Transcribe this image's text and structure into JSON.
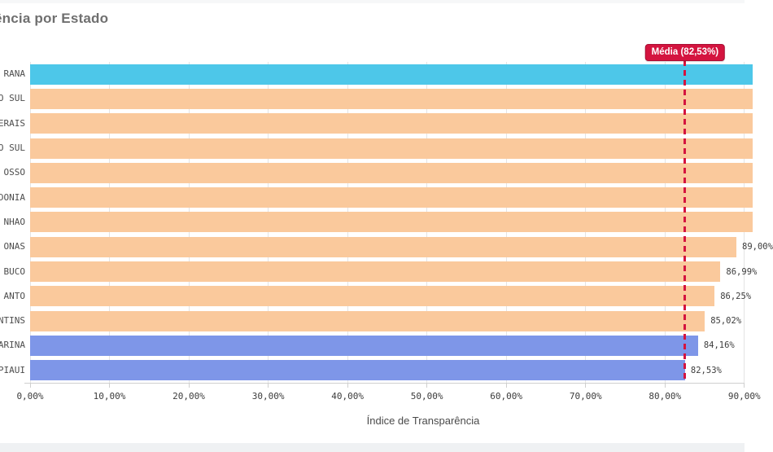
{
  "header": {
    "title": "ência por Estado"
  },
  "colors": {
    "highlight_bar": "#4dc7e9",
    "default_bar": "#fac99c",
    "selected_bar": "#7e96e8",
    "mean_red": "#d4143f",
    "mean_border": "#a90f34",
    "grid": "#e4e4e4",
    "axis_line": "#cfcfcf",
    "tick_text": "#3c3c3c",
    "state_text": "#4d4d4d",
    "value_text": "#3c3c3c",
    "title_text": "#6f6f6f",
    "axis_label_text": "#4a4a4a",
    "strip_top": "#f6f7f8",
    "strip_bottom": "#eff1f3"
  },
  "chart": {
    "xlabel": "Índice de Transparência",
    "mean": {
      "label": "Média (82,53%)",
      "value_pct": 82.53
    },
    "ticks": [
      {
        "pct": 0,
        "label": "0,00%"
      },
      {
        "pct": 10,
        "label": "10,00%"
      },
      {
        "pct": 20,
        "label": "20,00%"
      },
      {
        "pct": 30,
        "label": "30,00%"
      },
      {
        "pct": 40,
        "label": "40,00%"
      },
      {
        "pct": 50,
        "label": "50,00%"
      },
      {
        "pct": 60,
        "label": "60,00%"
      },
      {
        "pct": 70,
        "label": "70,00%"
      },
      {
        "pct": 80,
        "label": "80,00%"
      },
      {
        "pct": 90,
        "label": "90,00%"
      }
    ],
    "rows": [
      {
        "label": "RANA",
        "color": "highlight_bar",
        "value_pct": null,
        "value_label": "",
        "cut": true
      },
      {
        "label": "O SUL",
        "color": "default_bar",
        "value_pct": null,
        "value_label": "",
        "cut": true
      },
      {
        "label": "ERAIS",
        "color": "default_bar",
        "value_pct": null,
        "value_label": "",
        "cut": true
      },
      {
        "label": "O SUL",
        "color": "default_bar",
        "value_pct": null,
        "value_label": "",
        "cut": true
      },
      {
        "label": "OSSO",
        "color": "default_bar",
        "value_pct": null,
        "value_label": "",
        "cut": true
      },
      {
        "label": "DONIA",
        "color": "default_bar",
        "value_pct": null,
        "value_label": "",
        "cut": true
      },
      {
        "label": "NHAO",
        "color": "default_bar",
        "value_pct": null,
        "value_label": "",
        "cut": true
      },
      {
        "label": "ONAS",
        "color": "default_bar",
        "value_pct": 89.0,
        "value_label": "89,00%",
        "cut": false
      },
      {
        "label": "BUCO",
        "color": "default_bar",
        "value_pct": 86.99,
        "value_label": "86,99%",
        "cut": false
      },
      {
        "label": "ANTO",
        "color": "default_bar",
        "value_pct": 86.25,
        "value_label": "86,25%",
        "cut": false
      },
      {
        "label": "NTINS",
        "color": "default_bar",
        "value_pct": 85.02,
        "value_label": "85,02%",
        "cut": false
      },
      {
        "label": "ARINA",
        "color": "selected_bar",
        "value_pct": 84.16,
        "value_label": "84,16%",
        "cut": false
      },
      {
        "label": "PIAUI",
        "color": "selected_bar",
        "value_pct": 82.53,
        "value_label": "82,53%",
        "cut": false
      }
    ]
  },
  "chart_data": {
    "type": "bar",
    "orientation": "horizontal",
    "title": "ência por Estado",
    "xlabel": "Índice de Transparência",
    "categories": [
      "RANA",
      "O SUL",
      "ERAIS",
      "O SUL",
      "OSSO",
      "DONIA",
      "NHAO",
      "ONAS",
      "BUCO",
      "ANTO",
      "NTINS",
      "ARINA",
      "PIAUI"
    ],
    "values": [
      null,
      null,
      null,
      null,
      null,
      null,
      null,
      89.0,
      86.99,
      86.25,
      85.02,
      84.16,
      82.53
    ],
    "value_labels_visible": [
      "",
      "",
      "",
      "",
      "",
      "",
      "",
      "",
      "86,99%",
      "86,25%",
      "85,02%",
      "84,16%",
      "82,53%"
    ],
    "xlim_visible": [
      0,
      90.05
    ],
    "tick_labels": [
      "0,00%",
      "10,00%",
      "20,00%",
      "30,00%",
      "40,00%",
      "50,00%",
      "60,00%",
      "70,00%",
      "80,00%",
      "90,00%"
    ],
    "grid": true,
    "annotation": {
      "label": "Média (82,53%)",
      "value_pct": 82.53
    },
    "note": "Chart is cropped: category labels are truncated at the left edge and the first 7 bars extend beyond the right edge of the visible area; null values mean the bar end is not visible."
  }
}
